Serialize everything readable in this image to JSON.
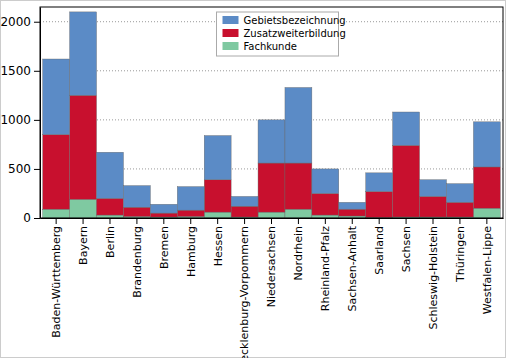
{
  "chart_data": {
    "type": "bar",
    "stacked": true,
    "grid": true,
    "legend": "top",
    "categories": [
      "Baden-Württemberg",
      "Bayern",
      "Berlin",
      "Brandenburg",
      "Bremen",
      "Hamburg",
      "Hessen",
      "Mecklenburg-Vorpommern",
      "Niedersachsen",
      "Nordrhein",
      "Rheinland-Pfalz",
      "Sachsen-Anhalt",
      "Saarland",
      "Sachsen",
      "Schleswig-Holstein",
      "Thüringen",
      "Westfalen-Lippe"
    ],
    "series": [
      {
        "name": "Gebietsbezeichnung",
        "color": "#5b8bc6",
        "values": [
          770,
          850,
          470,
          220,
          90,
          240,
          450,
          100,
          440,
          770,
          250,
          70,
          190,
          340,
          170,
          190,
          460
        ]
      },
      {
        "name": "Zusatzweiterbildung",
        "color": "#c8102e",
        "values": [
          760,
          1060,
          170,
          95,
          40,
          65,
          330,
          110,
          500,
          470,
          220,
          70,
          265,
          730,
          210,
          150,
          420
        ]
      },
      {
        "name": "Fachkunde",
        "color": "#7fc9a1",
        "values": [
          90,
          190,
          30,
          15,
          10,
          15,
          60,
          10,
          60,
          90,
          30,
          20,
          5,
          10,
          10,
          10,
          100
        ]
      }
    ],
    "ylim": [
      0,
      2150
    ],
    "yticks": [
      0,
      500,
      1000,
      1500,
      2000
    ]
  }
}
